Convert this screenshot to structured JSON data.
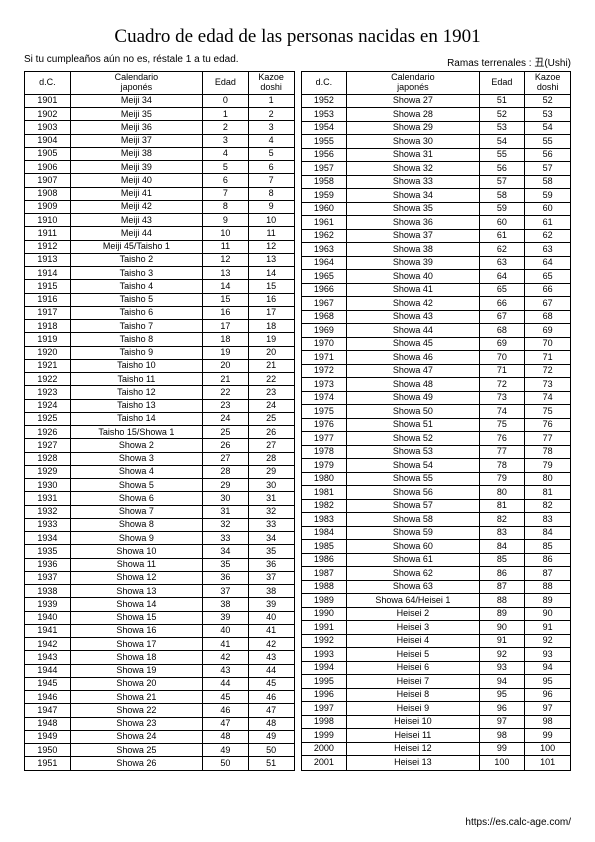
{
  "title": "Cuadro de edad de las personas nacidas en 1901",
  "subtitle_left": "Si tu cumpleaños aún no es, réstale 1 a tu edad.",
  "subtitle_right": "Ramas terrenales : 丑(Ushi)",
  "footer_url": "https://es.calc-age.com/",
  "headers": {
    "dc": "d.C.",
    "cal_line1": "Calendario",
    "cal_line2": "japonés",
    "edad": "Edad",
    "kazoe_line1": "Kazoe",
    "kazoe_line2": "doshi"
  },
  "left_rows": [
    [
      "1901",
      "Meiji 34",
      "0",
      "1"
    ],
    [
      "1902",
      "Meiji 35",
      "1",
      "2"
    ],
    [
      "1903",
      "Meiji 36",
      "2",
      "3"
    ],
    [
      "1904",
      "Meiji 37",
      "3",
      "4"
    ],
    [
      "1905",
      "Meiji 38",
      "4",
      "5"
    ],
    [
      "1906",
      "Meiji 39",
      "5",
      "6"
    ],
    [
      "1907",
      "Meiji 40",
      "6",
      "7"
    ],
    [
      "1908",
      "Meiji 41",
      "7",
      "8"
    ],
    [
      "1909",
      "Meiji 42",
      "8",
      "9"
    ],
    [
      "1910",
      "Meiji 43",
      "9",
      "10"
    ],
    [
      "1911",
      "Meiji 44",
      "10",
      "11"
    ],
    [
      "1912",
      "Meiji 45/Taisho 1",
      "11",
      "12"
    ],
    [
      "1913",
      "Taisho 2",
      "12",
      "13"
    ],
    [
      "1914",
      "Taisho 3",
      "13",
      "14"
    ],
    [
      "1915",
      "Taisho 4",
      "14",
      "15"
    ],
    [
      "1916",
      "Taisho 5",
      "15",
      "16"
    ],
    [
      "1917",
      "Taisho 6",
      "16",
      "17"
    ],
    [
      "1918",
      "Taisho 7",
      "17",
      "18"
    ],
    [
      "1919",
      "Taisho 8",
      "18",
      "19"
    ],
    [
      "1920",
      "Taisho 9",
      "19",
      "20"
    ],
    [
      "1921",
      "Taisho 10",
      "20",
      "21"
    ],
    [
      "1922",
      "Taisho 11",
      "21",
      "22"
    ],
    [
      "1923",
      "Taisho 12",
      "22",
      "23"
    ],
    [
      "1924",
      "Taisho 13",
      "23",
      "24"
    ],
    [
      "1925",
      "Taisho 14",
      "24",
      "25"
    ],
    [
      "1926",
      "Taisho 15/Showa 1",
      "25",
      "26"
    ],
    [
      "1927",
      "Showa 2",
      "26",
      "27"
    ],
    [
      "1928",
      "Showa 3",
      "27",
      "28"
    ],
    [
      "1929",
      "Showa 4",
      "28",
      "29"
    ],
    [
      "1930",
      "Showa 5",
      "29",
      "30"
    ],
    [
      "1931",
      "Showa 6",
      "30",
      "31"
    ],
    [
      "1932",
      "Showa 7",
      "31",
      "32"
    ],
    [
      "1933",
      "Showa 8",
      "32",
      "33"
    ],
    [
      "1934",
      "Showa 9",
      "33",
      "34"
    ],
    [
      "1935",
      "Showa 10",
      "34",
      "35"
    ],
    [
      "1936",
      "Showa 11",
      "35",
      "36"
    ],
    [
      "1937",
      "Showa 12",
      "36",
      "37"
    ],
    [
      "1938",
      "Showa 13",
      "37",
      "38"
    ],
    [
      "1939",
      "Showa 14",
      "38",
      "39"
    ],
    [
      "1940",
      "Showa 15",
      "39",
      "40"
    ],
    [
      "1941",
      "Showa 16",
      "40",
      "41"
    ],
    [
      "1942",
      "Showa 17",
      "41",
      "42"
    ],
    [
      "1943",
      "Showa 18",
      "42",
      "43"
    ],
    [
      "1944",
      "Showa 19",
      "43",
      "44"
    ],
    [
      "1945",
      "Showa 20",
      "44",
      "45"
    ],
    [
      "1946",
      "Showa 21",
      "45",
      "46"
    ],
    [
      "1947",
      "Showa 22",
      "46",
      "47"
    ],
    [
      "1948",
      "Showa 23",
      "47",
      "48"
    ],
    [
      "1949",
      "Showa 24",
      "48",
      "49"
    ],
    [
      "1950",
      "Showa 25",
      "49",
      "50"
    ],
    [
      "1951",
      "Showa 26",
      "50",
      "51"
    ]
  ],
  "right_rows": [
    [
      "1952",
      "Showa 27",
      "51",
      "52"
    ],
    [
      "1953",
      "Showa 28",
      "52",
      "53"
    ],
    [
      "1954",
      "Showa 29",
      "53",
      "54"
    ],
    [
      "1955",
      "Showa 30",
      "54",
      "55"
    ],
    [
      "1956",
      "Showa 31",
      "55",
      "56"
    ],
    [
      "1957",
      "Showa 32",
      "56",
      "57"
    ],
    [
      "1958",
      "Showa 33",
      "57",
      "58"
    ],
    [
      "1959",
      "Showa 34",
      "58",
      "59"
    ],
    [
      "1960",
      "Showa 35",
      "59",
      "60"
    ],
    [
      "1961",
      "Showa 36",
      "60",
      "61"
    ],
    [
      "1962",
      "Showa 37",
      "61",
      "62"
    ],
    [
      "1963",
      "Showa 38",
      "62",
      "63"
    ],
    [
      "1964",
      "Showa 39",
      "63",
      "64"
    ],
    [
      "1965",
      "Showa 40",
      "64",
      "65"
    ],
    [
      "1966",
      "Showa 41",
      "65",
      "66"
    ],
    [
      "1967",
      "Showa 42",
      "66",
      "67"
    ],
    [
      "1968",
      "Showa 43",
      "67",
      "68"
    ],
    [
      "1969",
      "Showa 44",
      "68",
      "69"
    ],
    [
      "1970",
      "Showa 45",
      "69",
      "70"
    ],
    [
      "1971",
      "Showa 46",
      "70",
      "71"
    ],
    [
      "1972",
      "Showa 47",
      "71",
      "72"
    ],
    [
      "1973",
      "Showa 48",
      "72",
      "73"
    ],
    [
      "1974",
      "Showa 49",
      "73",
      "74"
    ],
    [
      "1975",
      "Showa 50",
      "74",
      "75"
    ],
    [
      "1976",
      "Showa 51",
      "75",
      "76"
    ],
    [
      "1977",
      "Showa 52",
      "76",
      "77"
    ],
    [
      "1978",
      "Showa 53",
      "77",
      "78"
    ],
    [
      "1979",
      "Showa 54",
      "78",
      "79"
    ],
    [
      "1980",
      "Showa 55",
      "79",
      "80"
    ],
    [
      "1981",
      "Showa 56",
      "80",
      "81"
    ],
    [
      "1982",
      "Showa 57",
      "81",
      "82"
    ],
    [
      "1983",
      "Showa 58",
      "82",
      "83"
    ],
    [
      "1984",
      "Showa 59",
      "83",
      "84"
    ],
    [
      "1985",
      "Showa 60",
      "84",
      "85"
    ],
    [
      "1986",
      "Showa 61",
      "85",
      "86"
    ],
    [
      "1987",
      "Showa 62",
      "86",
      "87"
    ],
    [
      "1988",
      "Showa 63",
      "87",
      "88"
    ],
    [
      "1989",
      "Showa 64/Heisei 1",
      "88",
      "89"
    ],
    [
      "1990",
      "Heisei 2",
      "89",
      "90"
    ],
    [
      "1991",
      "Heisei 3",
      "90",
      "91"
    ],
    [
      "1992",
      "Heisei 4",
      "91",
      "92"
    ],
    [
      "1993",
      "Heisei 5",
      "92",
      "93"
    ],
    [
      "1994",
      "Heisei 6",
      "93",
      "94"
    ],
    [
      "1995",
      "Heisei 7",
      "94",
      "95"
    ],
    [
      "1996",
      "Heisei 8",
      "95",
      "96"
    ],
    [
      "1997",
      "Heisei 9",
      "96",
      "97"
    ],
    [
      "1998",
      "Heisei 10",
      "97",
      "98"
    ],
    [
      "1999",
      "Heisei 11",
      "98",
      "99"
    ],
    [
      "2000",
      "Heisei 12",
      "99",
      "100"
    ],
    [
      "2001",
      "Heisei 13",
      "100",
      "101"
    ]
  ]
}
